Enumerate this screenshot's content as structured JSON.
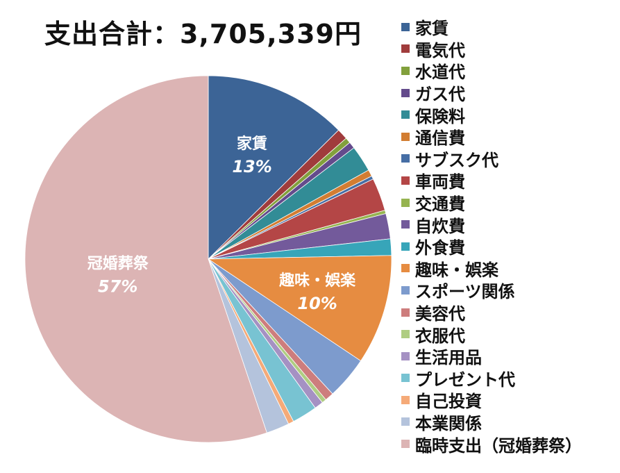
{
  "title": "支出合計：3,705,339円",
  "chart_data": {
    "type": "pie",
    "title": "支出合計：3,705,339円",
    "slices": [
      {
        "name": "家賃",
        "percent": 13.0,
        "color": "#3c6496"
      },
      {
        "name": "電気代",
        "percent": 1.0,
        "color": "#a03c3c"
      },
      {
        "name": "水道代",
        "percent": 0.5,
        "color": "#82a03c"
      },
      {
        "name": "ガス代",
        "percent": 0.6,
        "color": "#644b8c"
      },
      {
        "name": "保険料",
        "percent": 2.4,
        "color": "#328c96"
      },
      {
        "name": "通信費",
        "percent": 0.6,
        "color": "#d27d32"
      },
      {
        "name": "サブスク代",
        "percent": 0.3,
        "color": "#466ea5"
      },
      {
        "name": "車両費",
        "percent": 3.0,
        "color": "#b44646"
      },
      {
        "name": "交通費",
        "percent": 0.3,
        "color": "#96b450"
      },
      {
        "name": "自炊費",
        "percent": 2.3,
        "color": "#735a9b"
      },
      {
        "name": "外食費",
        "percent": 1.5,
        "color": "#37a5b9"
      },
      {
        "name": "趣味・娯楽",
        "percent": 10.0,
        "color": "#e68c41"
      },
      {
        "name": "スポーツ関係",
        "percent": 3.9,
        "color": "#7d9bcd"
      },
      {
        "name": "美容代",
        "percent": 0.8,
        "color": "#cd7d7d"
      },
      {
        "name": "衣服代",
        "percent": 0.4,
        "color": "#afcd82"
      },
      {
        "name": "生活用品",
        "percent": 0.8,
        "color": "#a591c3"
      },
      {
        "name": "プレゼント代",
        "percent": 2.3,
        "color": "#78c3d2"
      },
      {
        "name": "自己投資",
        "percent": 0.5,
        "color": "#f5aa78"
      },
      {
        "name": "本業関係",
        "percent": 2.1,
        "color": "#b4c3dc"
      },
      {
        "name": "臨時支出（冠婚葬祭）",
        "percent": 57.0,
        "color": "#dcb4b4"
      }
    ],
    "data_labels": [
      {
        "slice": "家賃",
        "name": "家賃",
        "value": "13%"
      },
      {
        "slice": "趣味・娯楽",
        "name": "趣味・娯楽",
        "value": "10%"
      },
      {
        "slice": "臨時支出（冠婚葬祭）",
        "name": "冠婚葬祭",
        "value": "57%"
      }
    ],
    "legend_position": "right"
  }
}
